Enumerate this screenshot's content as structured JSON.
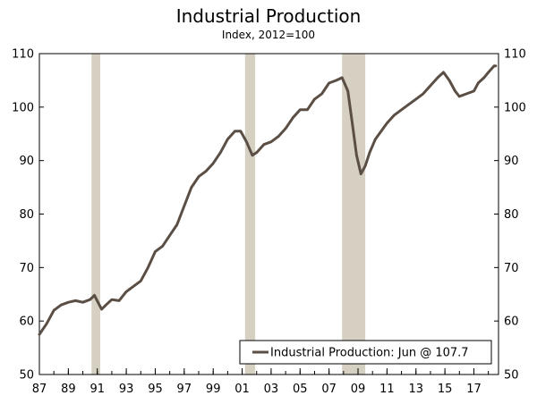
{
  "chart_data": {
    "type": "line",
    "title": "Industrial Production",
    "subtitle": "Index, 2012=100",
    "xlabel": "",
    "ylabel": "",
    "x_range": [
      1987.0,
      2018.7
    ],
    "ylim": [
      50,
      110
    ],
    "y_ticks": [
      50,
      60,
      70,
      80,
      90,
      100,
      110
    ],
    "x_ticks": [
      {
        "year": 1987,
        "label": "87"
      },
      {
        "year": 1989,
        "label": "89"
      },
      {
        "year": 1991,
        "label": "91"
      },
      {
        "year": 1993,
        "label": "93"
      },
      {
        "year": 1995,
        "label": "95"
      },
      {
        "year": 1997,
        "label": "97"
      },
      {
        "year": 1999,
        "label": "99"
      },
      {
        "year": 2001,
        "label": "01"
      },
      {
        "year": 2003,
        "label": "03"
      },
      {
        "year": 2005,
        "label": "05"
      },
      {
        "year": 2007,
        "label": "07"
      },
      {
        "year": 2009,
        "label": "09"
      },
      {
        "year": 2011,
        "label": "11"
      },
      {
        "year": 2013,
        "label": "13"
      },
      {
        "year": 2015,
        "label": "15"
      },
      {
        "year": 2017,
        "label": "17"
      }
    ],
    "recessions": [
      {
        "start": 1990.6,
        "end": 1991.2
      },
      {
        "start": 2001.2,
        "end": 2001.9
      },
      {
        "start": 2007.9,
        "end": 2009.5
      }
    ],
    "legend": {
      "label": "Industrial Production: Jun @ 107.7",
      "placement": "bottom-right"
    },
    "series": [
      {
        "name": "Industrial Production",
        "color": "#5a4e45",
        "x": [
          1987.0,
          1987.5,
          1988.0,
          1988.5,
          1989.0,
          1989.5,
          1990.0,
          1990.5,
          1990.8,
          1991.1,
          1991.3,
          1991.6,
          1992.0,
          1992.5,
          1993.0,
          1993.5,
          1994.0,
          1994.5,
          1995.0,
          1995.5,
          1996.0,
          1996.5,
          1997.0,
          1997.5,
          1998.0,
          1998.5,
          1999.0,
          1999.5,
          2000.0,
          2000.5,
          2000.9,
          2001.3,
          2001.7,
          2002.0,
          2002.5,
          2003.0,
          2003.5,
          2004.0,
          2004.5,
          2005.0,
          2005.5,
          2006.0,
          2006.5,
          2007.0,
          2007.5,
          2007.9,
          2008.3,
          2008.6,
          2008.9,
          2009.2,
          2009.5,
          2009.8,
          2010.2,
          2010.6,
          2011.0,
          2011.5,
          2012.0,
          2012.5,
          2013.0,
          2013.5,
          2014.0,
          2014.5,
          2014.9,
          2015.3,
          2015.7,
          2016.0,
          2016.5,
          2017.0,
          2017.3,
          2017.7,
          2018.0,
          2018.4,
          2018.5
        ],
        "values": [
          57.5,
          59.5,
          62,
          63,
          63.5,
          63.8,
          63.5,
          64,
          64.8,
          63.2,
          62.2,
          63,
          64,
          63.8,
          65.5,
          66.5,
          67.5,
          70,
          73,
          74,
          76,
          78,
          81.5,
          85,
          87,
          88,
          89.5,
          91.5,
          94,
          95.5,
          95.5,
          93.5,
          91,
          91.5,
          93,
          93.5,
          94.5,
          96,
          98,
          99.5,
          99.5,
          101.5,
          102.5,
          104.5,
          105,
          105.5,
          103,
          97,
          91,
          87.5,
          89,
          91.5,
          94,
          95.5,
          97,
          98.5,
          99.5,
          100.5,
          101.5,
          102.5,
          104,
          105.5,
          106.5,
          105,
          103,
          102,
          102.5,
          103,
          104.5,
          105.5,
          106.5,
          107.7,
          107.7
        ]
      }
    ]
  }
}
